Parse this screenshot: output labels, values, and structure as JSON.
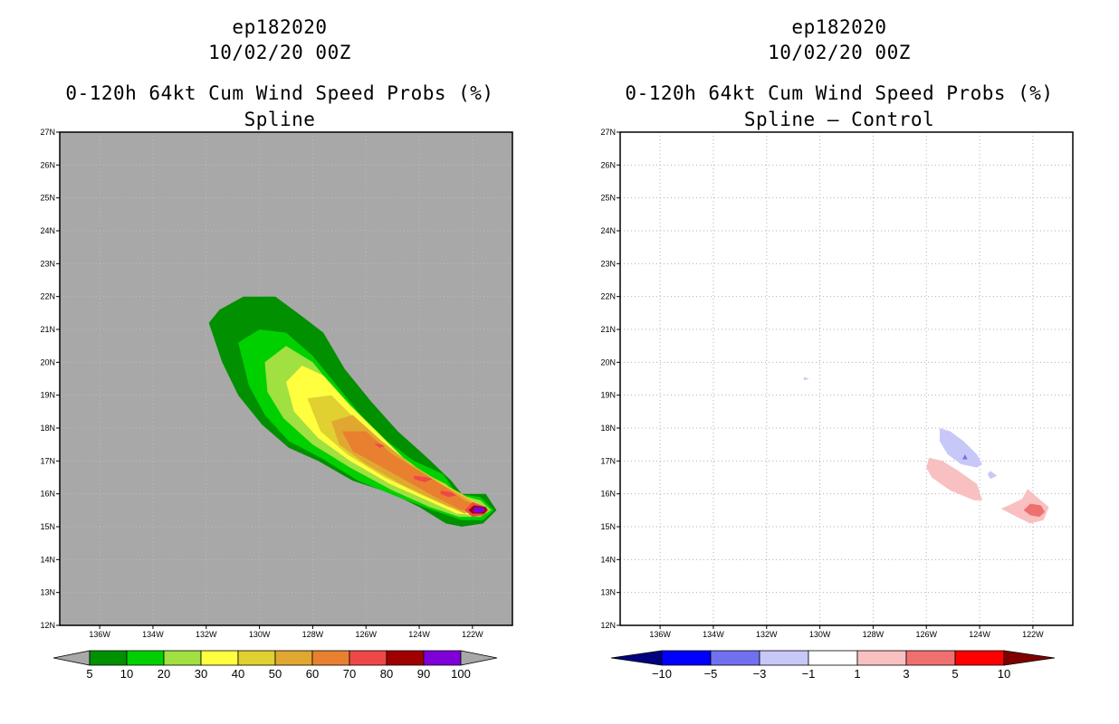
{
  "chart_data": [
    {
      "type": "heatmap",
      "storm_id": "ep182020",
      "datetime": "10/02/20 00Z",
      "title": "0-120h 64kt Cum Wind Speed Probs (%)",
      "subtitle": "Spline",
      "xlabel": "",
      "ylabel": "",
      "xlim": [
        137.5,
        120.5
      ],
      "ylim": [
        12,
        27
      ],
      "x_ticks": [
        "136W",
        "134W",
        "132W",
        "130W",
        "128W",
        "126W",
        "124W",
        "122W"
      ],
      "y_ticks": [
        "12N",
        "13N",
        "14N",
        "15N",
        "16N",
        "17N",
        "18N",
        "19N",
        "20N",
        "21N",
        "22N",
        "23N",
        "24N",
        "25N",
        "26N",
        "27N"
      ],
      "grid": true,
      "background_color": "#a8a8a8",
      "colorbar": {
        "labels": [
          "5",
          "10",
          "20",
          "30",
          "40",
          "50",
          "60",
          "70",
          "80",
          "90",
          "100"
        ],
        "colors": [
          "#009000",
          "#00d000",
          "#a0e040",
          "#ffff40",
          "#e0d030",
          "#e0a830",
          "#e88030",
          "#f04848",
          "#a00000",
          "#8000d8"
        ],
        "end_color": "#a8a8a8"
      },
      "contours": [
        {
          "level": 5,
          "color": "#009000",
          "points": [
            [
              131.9,
              21.2
            ],
            [
              131.5,
              21.6
            ],
            [
              130.6,
              22.0
            ],
            [
              129.4,
              22.0
            ],
            [
              128.4,
              21.4
            ],
            [
              127.6,
              20.9
            ],
            [
              126.8,
              19.8
            ],
            [
              125.8,
              18.8
            ],
            [
              124.8,
              17.9
            ],
            [
              123.7,
              17.1
            ],
            [
              122.8,
              16.4
            ],
            [
              122.4,
              16.0
            ],
            [
              121.5,
              16.0
            ],
            [
              121.1,
              15.5
            ],
            [
              121.6,
              15.1
            ],
            [
              122.4,
              15.0
            ],
            [
              123.0,
              15.1
            ],
            [
              124.0,
              15.6
            ],
            [
              125.0,
              16.0
            ],
            [
              126.5,
              16.4
            ],
            [
              127.8,
              17.0
            ],
            [
              128.9,
              17.4
            ],
            [
              129.9,
              18.1
            ],
            [
              130.8,
              19.0
            ],
            [
              131.4,
              20.0
            ],
            [
              131.9,
              21.2
            ]
          ]
        },
        {
          "level": 10,
          "color": "#00d000",
          "points": [
            [
              130.8,
              20.6
            ],
            [
              130.0,
              21.0
            ],
            [
              129.0,
              20.9
            ],
            [
              128.0,
              20.2
            ],
            [
              127.1,
              19.3
            ],
            [
              126.2,
              18.4
            ],
            [
              125.2,
              17.6
            ],
            [
              124.2,
              17.0
            ],
            [
              123.1,
              16.6
            ],
            [
              122.6,
              16.0
            ],
            [
              121.7,
              15.9
            ],
            [
              121.2,
              15.5
            ],
            [
              121.6,
              15.2
            ],
            [
              122.4,
              15.2
            ],
            [
              123.5,
              15.5
            ],
            [
              124.8,
              15.9
            ],
            [
              126.3,
              16.4
            ],
            [
              127.7,
              17.1
            ],
            [
              128.9,
              17.6
            ],
            [
              129.8,
              18.4
            ],
            [
              130.4,
              19.3
            ],
            [
              130.8,
              20.6
            ]
          ]
        },
        {
          "level": 20,
          "color": "#a0e040",
          "points": [
            [
              129.8,
              20.0
            ],
            [
              129.0,
              20.5
            ],
            [
              128.0,
              20.0
            ],
            [
              127.0,
              19.0
            ],
            [
              126.0,
              18.1
            ],
            [
              125.0,
              17.3
            ],
            [
              124.0,
              16.7
            ],
            [
              123.0,
              16.3
            ],
            [
              122.6,
              16.0
            ],
            [
              121.7,
              15.8
            ],
            [
              121.3,
              15.5
            ],
            [
              121.7,
              15.3
            ],
            [
              122.5,
              15.3
            ],
            [
              123.6,
              15.6
            ],
            [
              125.0,
              16.1
            ],
            [
              126.6,
              16.8
            ],
            [
              128.0,
              17.5
            ],
            [
              129.1,
              18.3
            ],
            [
              129.7,
              19.1
            ],
            [
              129.8,
              20.0
            ]
          ]
        },
        {
          "level": 30,
          "color": "#ffff40",
          "points": [
            [
              129.0,
              19.4
            ],
            [
              128.4,
              19.9
            ],
            [
              127.6,
              19.6
            ],
            [
              126.6,
              18.7
            ],
            [
              125.6,
              17.9
            ],
            [
              124.6,
              17.1
            ],
            [
              123.6,
              16.5
            ],
            [
              122.6,
              16.0
            ],
            [
              121.8,
              15.7
            ],
            [
              121.4,
              15.5
            ],
            [
              121.8,
              15.35
            ],
            [
              122.6,
              15.4
            ],
            [
              123.7,
              15.8
            ],
            [
              125.1,
              16.3
            ],
            [
              126.6,
              17.0
            ],
            [
              127.8,
              17.7
            ],
            [
              128.7,
              18.5
            ],
            [
              129.0,
              19.4
            ]
          ]
        },
        {
          "level": 40,
          "color": "#e0d030",
          "points": [
            [
              128.2,
              18.9
            ],
            [
              127.3,
              19.0
            ],
            [
              126.3,
              18.2
            ],
            [
              125.3,
              17.5
            ],
            [
              124.3,
              16.9
            ],
            [
              123.3,
              16.4
            ],
            [
              122.4,
              16.0
            ],
            [
              121.6,
              15.6
            ],
            [
              121.9,
              15.4
            ],
            [
              122.9,
              15.6
            ],
            [
              124.0,
              16.0
            ],
            [
              125.3,
              16.5
            ],
            [
              126.7,
              17.2
            ],
            [
              127.7,
              17.9
            ],
            [
              128.2,
              18.9
            ]
          ]
        },
        {
          "level": 50,
          "color": "#e0a830",
          "points": [
            [
              127.3,
              18.2
            ],
            [
              126.5,
              18.4
            ],
            [
              125.4,
              17.6
            ],
            [
              124.3,
              16.9
            ],
            [
              123.2,
              16.3
            ],
            [
              122.3,
              15.9
            ],
            [
              121.7,
              15.6
            ],
            [
              122.3,
              15.4
            ],
            [
              123.4,
              15.8
            ],
            [
              124.7,
              16.3
            ],
            [
              126.0,
              16.9
            ],
            [
              127.0,
              17.5
            ],
            [
              127.3,
              18.2
            ]
          ]
        },
        {
          "level": 60,
          "color": "#e88030",
          "points": [
            [
              126.9,
              17.9
            ],
            [
              126.0,
              17.9
            ],
            [
              125.0,
              17.2
            ],
            [
              124.0,
              16.7
            ],
            [
              123.0,
              16.2
            ],
            [
              122.3,
              15.8
            ],
            [
              121.7,
              15.6
            ],
            [
              122.4,
              15.5
            ],
            [
              123.4,
              15.9
            ],
            [
              124.5,
              16.4
            ],
            [
              125.6,
              16.9
            ],
            [
              126.5,
              17.3
            ],
            [
              126.9,
              17.9
            ]
          ]
        },
        {
          "level": 70,
          "color": "#f04848",
          "points": [
            [
              122.0,
              15.75
            ],
            [
              121.5,
              15.6
            ],
            [
              121.4,
              15.5
            ],
            [
              121.6,
              15.35
            ],
            [
              122.0,
              15.3
            ],
            [
              122.3,
              15.5
            ]
          ],
          "extra": [
            [
              [
                124.2,
                16.55
              ],
              [
                123.7,
                16.5
              ],
              [
                123.5,
                16.45
              ],
              [
                123.8,
                16.35
              ],
              [
                124.2,
                16.45
              ]
            ],
            [
              [
                123.2,
                16.1
              ],
              [
                122.8,
                16.05
              ],
              [
                122.6,
                15.95
              ],
              [
                122.9,
                15.9
              ],
              [
                123.2,
                16.0
              ]
            ],
            [
              [
                125.7,
                17.55
              ],
              [
                125.4,
                17.5
              ],
              [
                125.3,
                17.45
              ],
              [
                125.5,
                17.4
              ]
            ]
          ]
        },
        {
          "level": 80,
          "color": "#a00000",
          "points": [
            [
              121.95,
              15.65
            ],
            [
              121.5,
              15.6
            ],
            [
              121.45,
              15.5
            ],
            [
              121.55,
              15.4
            ],
            [
              122.0,
              15.4
            ],
            [
              122.15,
              15.5
            ]
          ]
        },
        {
          "level": 90,
          "color": "#8000d8",
          "points": [
            [
              121.9,
              15.6
            ],
            [
              121.55,
              15.58
            ],
            [
              121.55,
              15.45
            ],
            [
              121.9,
              15.42
            ],
            [
              122.0,
              15.5
            ]
          ]
        }
      ]
    },
    {
      "type": "heatmap",
      "storm_id": "ep182020",
      "datetime": "10/02/20 00Z",
      "title": "0-120h 64kt Cum Wind Speed Probs (%)",
      "subtitle": "Spline – Control",
      "xlabel": "",
      "ylabel": "",
      "xlim": [
        137.5,
        120.5
      ],
      "ylim": [
        12,
        27
      ],
      "x_ticks": [
        "136W",
        "134W",
        "132W",
        "130W",
        "128W",
        "126W",
        "124W",
        "122W"
      ],
      "y_ticks": [
        "12N",
        "13N",
        "14N",
        "15N",
        "16N",
        "17N",
        "18N",
        "19N",
        "20N",
        "21N",
        "22N",
        "23N",
        "24N",
        "25N",
        "26N",
        "27N"
      ],
      "grid": true,
      "background_color": "#ffffff",
      "colorbar": {
        "labels": [
          "−10",
          "−5",
          "−3",
          "−1",
          "1",
          "3",
          "5",
          "10"
        ],
        "colors": [
          "#0000ff",
          "#7070f0",
          "#c8c8f8",
          "#ffffff",
          "#f8c0c0",
          "#f07070",
          "#ff0000"
        ],
        "low_end_color": "#000080",
        "high_end_color": "#800000"
      },
      "contours": [
        {
          "level": -1,
          "color": "#c8c8f8",
          "points": [
            [
              125.5,
              18.0
            ],
            [
              125.1,
              17.9
            ],
            [
              124.6,
              17.6
            ],
            [
              124.1,
              17.2
            ],
            [
              123.9,
              16.9
            ],
            [
              124.1,
              16.8
            ],
            [
              124.7,
              16.9
            ],
            [
              125.2,
              17.2
            ],
            [
              125.5,
              17.6
            ],
            [
              125.5,
              18.0
            ]
          ]
        },
        {
          "level": -1,
          "color": "#c8c8f8",
          "points": [
            [
              123.6,
              16.7
            ],
            [
              123.35,
              16.55
            ],
            [
              123.6,
              16.45
            ],
            [
              123.7,
              16.6
            ]
          ]
        },
        {
          "level": -1,
          "color": "#c8c8f8",
          "points": [
            [
              130.6,
              19.55
            ],
            [
              130.4,
              19.5
            ],
            [
              130.6,
              19.45
            ]
          ]
        },
        {
          "level": -3,
          "color": "#7070f0",
          "points": [
            [
              124.55,
              17.2
            ],
            [
              124.45,
              17.05
            ],
            [
              124.65,
              17.05
            ]
          ]
        },
        {
          "level": 1,
          "color": "#f8c0c0",
          "points": [
            [
              125.9,
              17.1
            ],
            [
              125.4,
              17.0
            ],
            [
              124.8,
              16.7
            ],
            [
              124.1,
              16.3
            ],
            [
              123.9,
              15.8
            ],
            [
              124.2,
              15.8
            ],
            [
              125.1,
              16.1
            ],
            [
              125.8,
              16.5
            ],
            [
              126.0,
              16.8
            ],
            [
              125.9,
              17.1
            ]
          ]
        },
        {
          "level": 1,
          "color": "#f8c0c0",
          "points": [
            [
              122.2,
              16.15
            ],
            [
              121.7,
              15.8
            ],
            [
              121.4,
              15.6
            ],
            [
              121.6,
              15.2
            ],
            [
              122.1,
              15.1
            ],
            [
              122.6,
              15.3
            ],
            [
              123.2,
              15.55
            ],
            [
              122.9,
              15.65
            ],
            [
              122.4,
              15.85
            ]
          ]
        },
        {
          "level": 3,
          "color": "#f07070",
          "points": [
            [
              122.1,
              15.7
            ],
            [
              121.7,
              15.65
            ],
            [
              121.55,
              15.45
            ],
            [
              121.75,
              15.3
            ],
            [
              122.1,
              15.35
            ],
            [
              122.35,
              15.5
            ]
          ]
        }
      ]
    }
  ]
}
